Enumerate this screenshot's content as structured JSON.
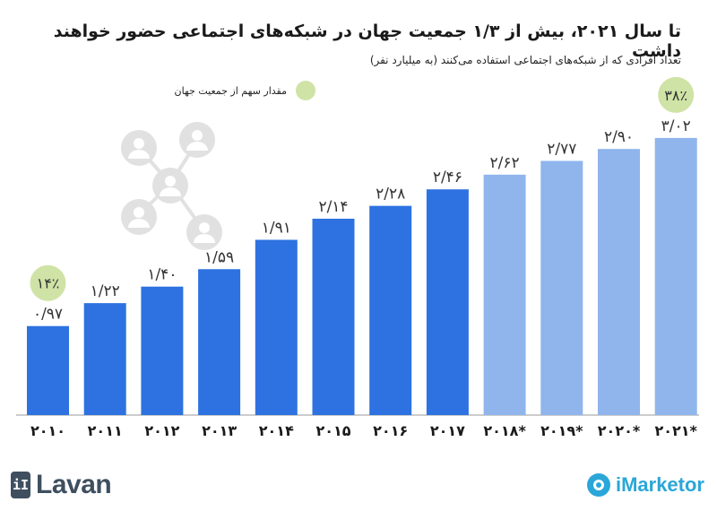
{
  "title": "تا سال ۲۰۲۱، بیش از ۱/۳ جمعیت جهان در شبکه‌های اجتماعی حضور خواهند داشت",
  "subtitle": "تعداد افرادی که از شبکه‌های اجتماعی استفاده می‌کنند (به میلیارد نفر)",
  "legend_label": "مقدار سهم از جمعیت جهان",
  "colors": {
    "actual": "#2d72e0",
    "forecast": "#8fb5ec",
    "share_badge": "#cfe3a6",
    "axis": "#999999"
  },
  "brand": {
    "left": "Lavan",
    "right": "iMarketor"
  },
  "chart_data": {
    "type": "bar",
    "title": "تا سال ۲۰۲۱، بیش از ۱/۳ جمعیت جهان در شبکه‌های اجتماعی حضور خواهند داشت",
    "categories": [
      "۲۰۱۰",
      "۲۰۱۱",
      "۲۰۱۲",
      "۲۰۱۳",
      "۲۰۱۴",
      "۲۰۱۵",
      "۲۰۱۶",
      "۲۰۱۷",
      "۲۰۱۸*",
      "۲۰۱۹*",
      "۲۰۲۰*",
      "۲۰۲۱*"
    ],
    "values": [
      0.97,
      1.22,
      1.4,
      1.59,
      1.91,
      2.14,
      2.28,
      2.46,
      2.62,
      2.77,
      2.9,
      3.02
    ],
    "value_labels": [
      "۰/۹۷",
      "۱/۲۲",
      "۱/۴۰",
      "۱/۵۹",
      "۱/۹۱",
      "۲/۱۴",
      "۲/۲۸",
      "۲/۴۶",
      "۲/۶۲",
      "۲/۷۷",
      "۲/۹۰",
      "۳/۰۲"
    ],
    "forecast": [
      false,
      false,
      false,
      false,
      false,
      false,
      false,
      false,
      true,
      true,
      true,
      true
    ],
    "share_annotations": [
      {
        "index": 0,
        "label": "۱۴٪"
      },
      {
        "index": 11,
        "label": "۳۸٪"
      }
    ],
    "ylim": [
      0,
      3.4
    ],
    "grid": false,
    "legend": "top-left"
  }
}
